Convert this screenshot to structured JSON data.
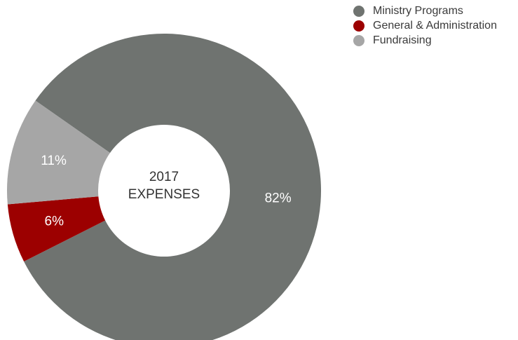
{
  "chart_data": {
    "type": "pie",
    "variant": "donut",
    "center_label": [
      "2017",
      "EXPENSES"
    ],
    "slices": [
      {
        "name": "Ministry Programs",
        "value": 82,
        "label": "82%",
        "color": "#6f7370"
      },
      {
        "name": "General & Administration",
        "value": 6,
        "label": "6%",
        "color": "#9c0000"
      },
      {
        "name": "Fundraising",
        "value": 11,
        "label": "11%",
        "color": "#a6a6a6"
      }
    ],
    "legend_position": "top-right"
  }
}
